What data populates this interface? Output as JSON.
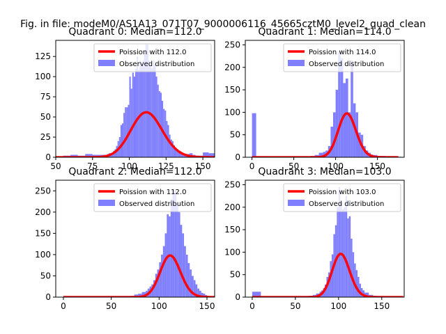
{
  "suptitle": "Fig. in file: modeM0/AS1A13_071T07_9000006116_45665cztM0_level2_quad_clean",
  "colors": {
    "bars": "#8080ff",
    "poisson": "#ff0000",
    "axes": "#000000"
  },
  "chart_data": [
    {
      "type": "bar",
      "title": "Quadrant 0: Median=112.0",
      "legend_location": "upper right",
      "series": [
        {
          "name": "Poission with 112.0",
          "kind": "line",
          "mean": 112.0,
          "scale": 1480
        },
        {
          "name": "Observed distribution",
          "kind": "histogram",
          "x": [
            55,
            60,
            65,
            70,
            75,
            80,
            85,
            86,
            89,
            90,
            91,
            92,
            93,
            94,
            95,
            96,
            97,
            98,
            99,
            100,
            101,
            102,
            103,
            104,
            105,
            106,
            107,
            108,
            109,
            110,
            111,
            112,
            113,
            114,
            115,
            116,
            117,
            118,
            119,
            120,
            121,
            122,
            123,
            124,
            125,
            126,
            127,
            128,
            129,
            130,
            131,
            132,
            133,
            135,
            137,
            139,
            141,
            143,
            145,
            150,
            154
          ],
          "values": [
            2,
            3,
            2,
            4,
            3,
            3,
            4,
            5,
            8,
            10,
            14,
            20,
            25,
            40,
            42,
            55,
            62,
            62,
            65,
            100,
            85,
            105,
            100,
            110,
            125,
            108,
            120,
            115,
            120,
            130,
            140,
            140,
            120,
            115,
            110,
            120,
            115,
            100,
            90,
            82,
            80,
            70,
            60,
            58,
            45,
            40,
            28,
            22,
            20,
            15,
            12,
            10,
            8,
            5,
            4,
            4,
            5,
            3,
            2,
            6,
            5
          ]
        }
      ],
      "xlim": [
        50,
        158
      ],
      "ylim": [
        0,
        145
      ],
      "xticks": [
        50,
        75,
        100,
        125,
        150
      ],
      "yticks": [
        0,
        25,
        50,
        75,
        100,
        125
      ]
    },
    {
      "type": "bar",
      "title": "Quadrant 1: Median=114.0",
      "legend_location": "upper right",
      "series": [
        {
          "name": "Poission with 114.0",
          "kind": "line",
          "mean": 114.0,
          "scale": 2610
        },
        {
          "name": "Observed distribution",
          "kind": "histogram",
          "x": [
            0,
            5,
            10,
            15,
            20,
            25,
            30,
            35,
            40,
            45,
            50,
            55,
            60,
            65,
            70,
            75,
            80,
            85,
            88,
            91,
            94,
            97,
            100,
            103,
            106,
            109,
            112,
            115,
            118,
            121,
            124,
            127,
            130,
            133,
            136,
            139,
            142,
            145,
            150,
            160,
            170
          ],
          "values": [
            98,
            2,
            2,
            1,
            1,
            1,
            1,
            1,
            1,
            1,
            2,
            1,
            2,
            1,
            3,
            5,
            10,
            12,
            15,
            25,
            68,
            100,
            150,
            235,
            220,
            165,
            175,
            100,
            215,
            120,
            100,
            55,
            50,
            25,
            15,
            10,
            6,
            5,
            3,
            2,
            1
          ]
        }
      ],
      "xlim": [
        -8,
        182
      ],
      "ylim": [
        0,
        260
      ],
      "xticks": [
        0,
        50,
        100,
        150
      ],
      "yticks": [
        0,
        50,
        100,
        150,
        200,
        250
      ]
    },
    {
      "type": "bar",
      "title": "Quadrant 2: Median=112.0",
      "legend_location": "upper right",
      "series": [
        {
          "name": "Poission with 112.0",
          "kind": "line",
          "mean": 112.0,
          "scale": 2600
        },
        {
          "name": "Observed distribution",
          "kind": "histogram",
          "x": [
            0,
            10,
            20,
            30,
            40,
            50,
            60,
            70,
            74,
            78,
            82,
            86,
            88,
            90,
            92,
            94,
            96,
            98,
            100,
            102,
            104,
            106,
            108,
            110,
            112,
            114,
            116,
            118,
            120,
            122,
            124,
            126,
            128,
            130,
            132,
            134,
            136,
            138,
            140,
            142,
            144,
            146,
            148,
            150
          ],
          "values": [
            2,
            1,
            1,
            1,
            1,
            2,
            2,
            3,
            6,
            8,
            12,
            15,
            20,
            25,
            30,
            40,
            55,
            65,
            82,
            100,
            120,
            150,
            195,
            190,
            230,
            255,
            250,
            220,
            200,
            170,
            150,
            120,
            100,
            80,
            65,
            50,
            40,
            30,
            20,
            15,
            10,
            8,
            5,
            3
          ]
        }
      ],
      "xlim": [
        -8,
        158
      ],
      "ylim": [
        0,
        275
      ],
      "xticks": [
        0,
        50,
        100,
        150
      ],
      "yticks": [
        0,
        50,
        100,
        150,
        200,
        250
      ]
    },
    {
      "type": "bar",
      "title": "Quadrant 3: Median=103.0",
      "legend_location": "upper right",
      "series": [
        {
          "name": "Poission with 103.0",
          "kind": "line",
          "mean": 103.0,
          "scale": 2450
        },
        {
          "name": "Observed distribution",
          "kind": "histogram",
          "x": [
            0,
            10,
            20,
            30,
            40,
            50,
            60,
            65,
            70,
            74,
            78,
            80,
            82,
            84,
            86,
            88,
            90,
            92,
            94,
            96,
            98,
            100,
            102,
            104,
            106,
            108,
            110,
            112,
            114,
            116,
            118,
            120,
            122,
            124,
            126,
            128,
            130,
            135,
            140,
            145,
            150
          ],
          "values": [
            12,
            1,
            1,
            1,
            1,
            2,
            2,
            3,
            5,
            8,
            12,
            15,
            20,
            28,
            45,
            55,
            80,
            95,
            140,
            160,
            200,
            245,
            210,
            195,
            200,
            225,
            175,
            180,
            130,
            100,
            75,
            60,
            45,
            30,
            20,
            15,
            10,
            5,
            3,
            2,
            1
          ]
        }
      ],
      "xlim": [
        -8,
        176
      ],
      "ylim": [
        0,
        260
      ],
      "xticks": [
        0,
        50,
        100,
        150
      ],
      "yticks": [
        0,
        50,
        100,
        150,
        200,
        250
      ]
    }
  ]
}
